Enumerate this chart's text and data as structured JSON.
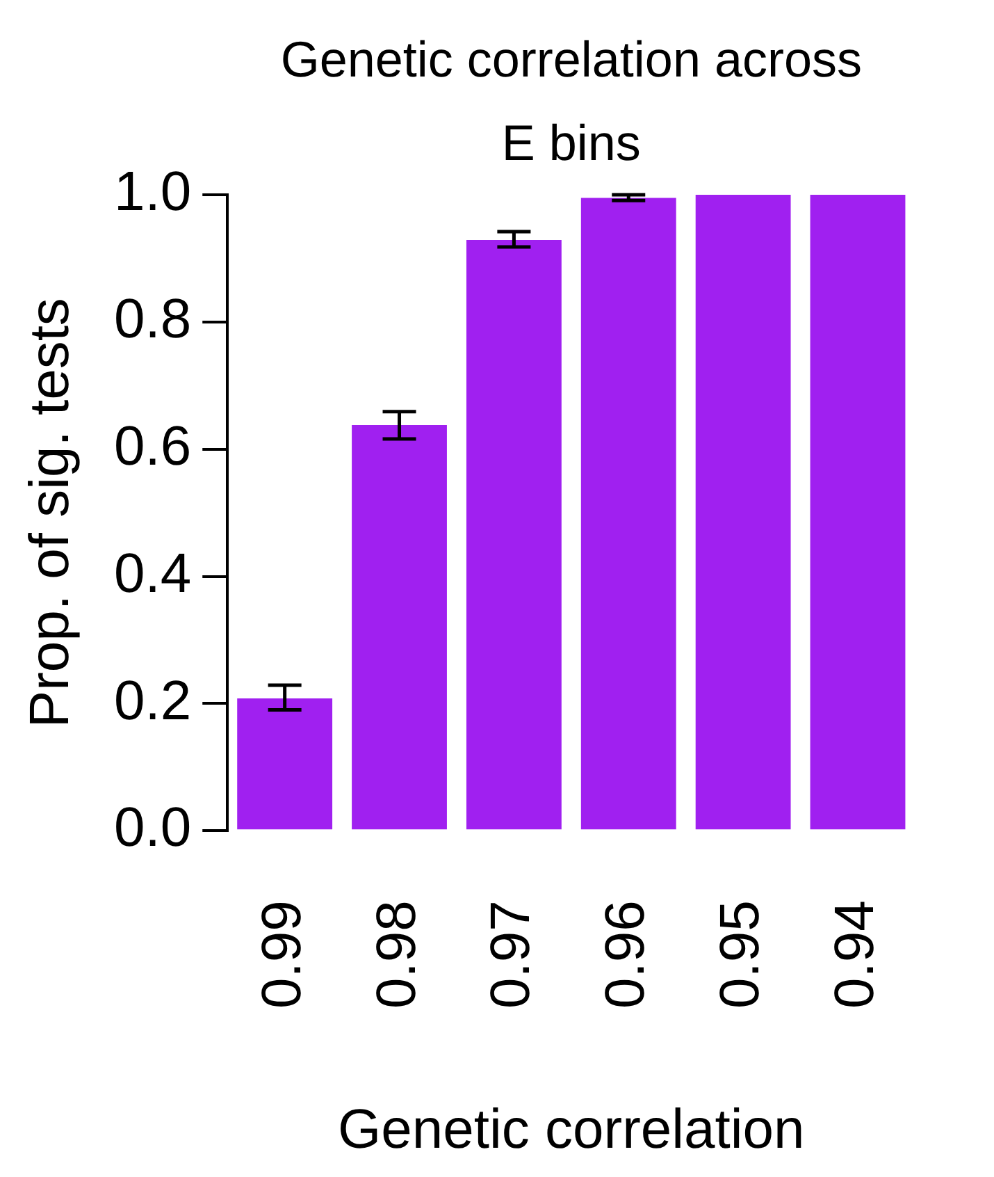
{
  "chart_data": {
    "type": "bar",
    "title": "Genetic correlation across E bins",
    "xlabel": "Genetic correlation",
    "ylabel": "Prop. of sig. tests",
    "categories": [
      "0.99",
      "0.98",
      "0.97",
      "0.96",
      "0.95",
      "0.94"
    ],
    "values": [
      0.208,
      0.638,
      0.929,
      0.995,
      1.0,
      1.0
    ],
    "errors": [
      [
        0.19,
        0.229
      ],
      [
        0.616,
        0.659
      ],
      [
        0.918,
        0.942
      ],
      [
        0.991,
        1.0
      ],
      null,
      null
    ],
    "color": "#a020f0",
    "ylim": [
      0,
      1
    ],
    "yticks": [
      {
        "value": 0,
        "label": "0.0"
      },
      0.2,
      0.4,
      0.6,
      0.8,
      {
        "value": 1,
        "label": "1.0"
      }
    ],
    "grid": false,
    "legend": false
  }
}
